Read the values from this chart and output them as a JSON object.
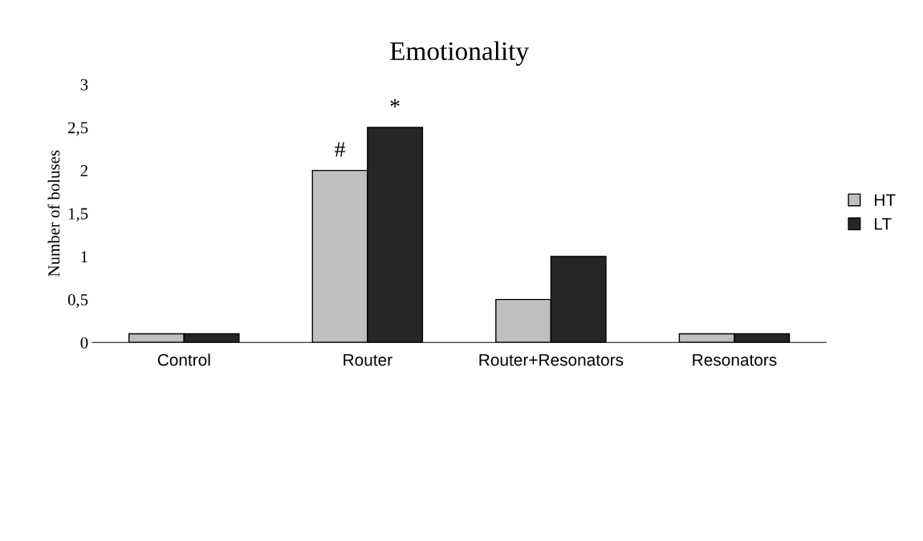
{
  "chart_data": {
    "type": "bar",
    "title": "Emotionality",
    "ylabel": "Number of boluses",
    "categories": [
      "Control",
      "Router",
      "Router+Resonators",
      "Resonators"
    ],
    "series": [
      {
        "name": "HT",
        "color": "#bfbfbf",
        "values": [
          0.1,
          2,
          0.5,
          0.1
        ]
      },
      {
        "name": "LT",
        "color": "#262626",
        "values": [
          0.1,
          2.5,
          1,
          0.1
        ]
      }
    ],
    "ylim": [
      0,
      3
    ],
    "yticks": [
      0,
      {
        "value": 0.5,
        "label": "0,5"
      },
      1,
      {
        "value": 1.5,
        "label": "1,5"
      },
      2,
      {
        "value": 2.5,
        "label": "2,5"
      },
      3
    ],
    "annotations": [
      {
        "text": "#",
        "x": "Router",
        "y": 2
      },
      {
        "text": "*",
        "x": "Router",
        "y": 2.5
      }
    ],
    "grid": false,
    "legend": "right"
  }
}
